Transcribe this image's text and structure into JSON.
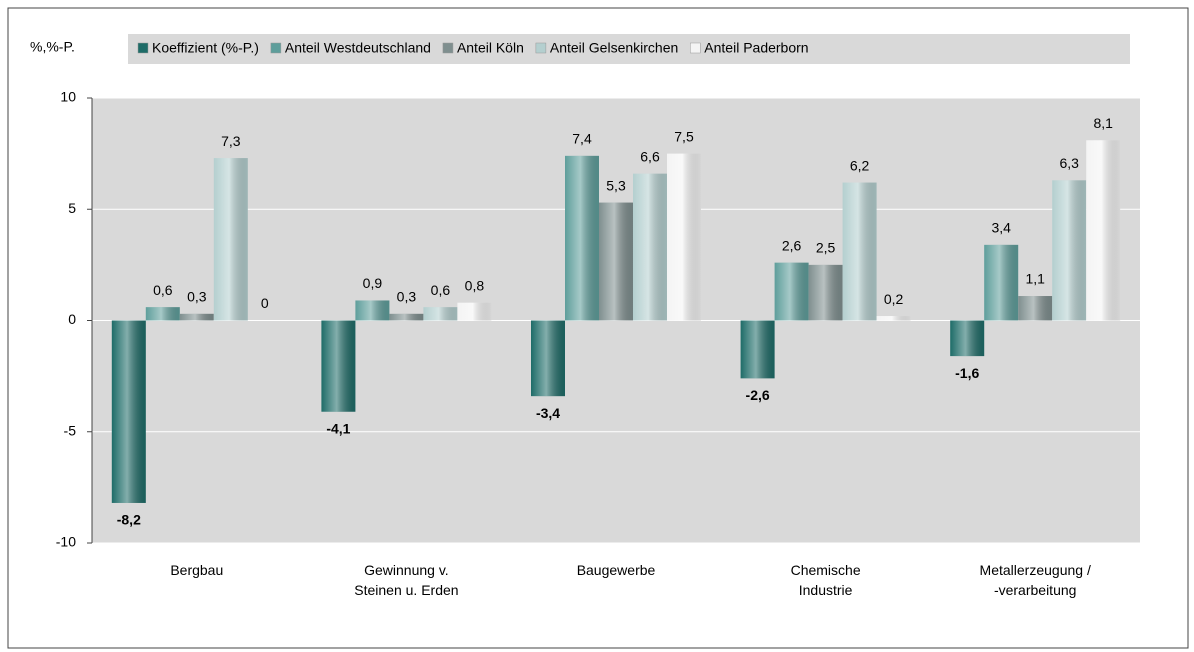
{
  "chart_data": {
    "type": "bar",
    "y_label": "%,%-P.",
    "categories": [
      "Bergbau",
      "Gewinnung v.\nSteinen u. Erden",
      "Baugewerbe",
      "Chemische\nIndustrie",
      "Metallerzeugung /\n-verarbeitung"
    ],
    "series": [
      {
        "name": "Koeffizient (%-P.)",
        "color": "#1e6c68",
        "values": [
          -8.2,
          -4.1,
          -3.4,
          -2.6,
          -1.6
        ],
        "value_labels": [
          "-8,2",
          "-4,1",
          "-3,4",
          "-2,6",
          "-1,6"
        ]
      },
      {
        "name": "Anteil Westdeutschland",
        "color": "#5e9e9b",
        "values": [
          0.6,
          0.9,
          7.4,
          2.6,
          3.4
        ],
        "value_labels": [
          "0,6",
          "0,9",
          "7,4",
          "2,6",
          "3,4"
        ]
      },
      {
        "name": "Anteil Köln",
        "color": "#7f8f8f",
        "values": [
          0.3,
          0.3,
          5.3,
          2.5,
          1.1
        ],
        "value_labels": [
          "0,3",
          "0,3",
          "5,3",
          "2,5",
          "1,1"
        ]
      },
      {
        "name": "Anteil Gelsenkirchen",
        "color": "#b4cfcf",
        "values": [
          7.3,
          0.6,
          6.6,
          6.2,
          6.3
        ],
        "value_labels": [
          "7,3",
          "0,6",
          "6,6",
          "6,2",
          "6,3"
        ]
      },
      {
        "name": "Anteil Paderborn",
        "color": "#f4f4f4",
        "values": [
          0,
          0.8,
          7.5,
          0.2,
          8.1
        ],
        "value_labels": [
          "0",
          "0,8",
          "7,5",
          "0,2",
          "8,1"
        ]
      }
    ],
    "ylim": [
      -10,
      10
    ],
    "yticks": [
      -10,
      -5,
      0,
      5,
      10
    ],
    "grid": true
  }
}
